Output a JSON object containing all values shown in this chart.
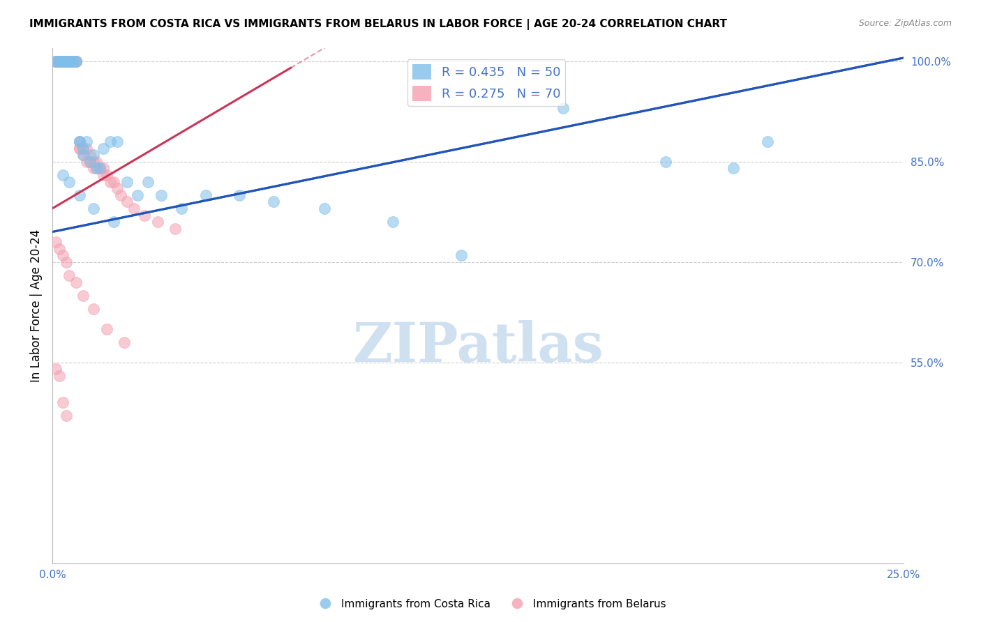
{
  "title": "IMMIGRANTS FROM COSTA RICA VS IMMIGRANTS FROM BELARUS IN LABOR FORCE | AGE 20-24 CORRELATION CHART",
  "source": "Source: ZipAtlas.com",
  "ylabel_left": "In Labor Force | Age 20-24",
  "x_min": 0.0,
  "x_max": 0.25,
  "y_min": 0.25,
  "y_max": 1.02,
  "right_yticks": [
    1.0,
    0.85,
    0.7,
    0.55
  ],
  "right_ytick_labels": [
    "100.0%",
    "85.0%",
    "70.0%",
    "55.0%"
  ],
  "blue_label": "Immigrants from Costa Rica",
  "pink_label": "Immigrants from Belarus",
  "blue_color": "#7fbfea",
  "pink_color": "#f4a0b0",
  "blue_line_color": "#2255bb",
  "pink_line_color": "#cc3355",
  "blue_R": 0.435,
  "blue_N": 50,
  "pink_R": 0.275,
  "pink_N": 70,
  "blue_trend": [
    0.0,
    0.25,
    0.745,
    1.005
  ],
  "pink_trend": [
    0.0,
    0.07,
    0.78,
    0.99
  ],
  "watermark": "ZIPatlas",
  "watermark_color": "#cfe0f0",
  "background_color": "#ffffff",
  "grid_color": "#cccccc",
  "title_fontsize": 11,
  "source_fontsize": 9,
  "blue_scatter_x": [
    0.001,
    0.001,
    0.002,
    0.002,
    0.002,
    0.003,
    0.003,
    0.003,
    0.004,
    0.004,
    0.004,
    0.005,
    0.005,
    0.005,
    0.006,
    0.006,
    0.007,
    0.007,
    0.008,
    0.008,
    0.009,
    0.009,
    0.01,
    0.011,
    0.012,
    0.013,
    0.014,
    0.015,
    0.017,
    0.019,
    0.022,
    0.025,
    0.028,
    0.032,
    0.038,
    0.045,
    0.055,
    0.065,
    0.08,
    0.1,
    0.12,
    0.15,
    0.18,
    0.2,
    0.21,
    0.003,
    0.005,
    0.008,
    0.012,
    0.018
  ],
  "blue_scatter_y": [
    1.0,
    1.0,
    1.0,
    1.0,
    1.0,
    1.0,
    1.0,
    1.0,
    1.0,
    1.0,
    1.0,
    1.0,
    1.0,
    1.0,
    1.0,
    1.0,
    1.0,
    1.0,
    0.88,
    0.88,
    0.87,
    0.86,
    0.88,
    0.85,
    0.86,
    0.84,
    0.84,
    0.87,
    0.88,
    0.88,
    0.82,
    0.8,
    0.82,
    0.8,
    0.78,
    0.8,
    0.8,
    0.79,
    0.78,
    0.76,
    0.71,
    0.93,
    0.85,
    0.84,
    0.88,
    0.83,
    0.82,
    0.8,
    0.78,
    0.76
  ],
  "pink_scatter_x": [
    0.001,
    0.001,
    0.001,
    0.001,
    0.001,
    0.002,
    0.002,
    0.002,
    0.002,
    0.002,
    0.002,
    0.003,
    0.003,
    0.003,
    0.003,
    0.003,
    0.004,
    0.004,
    0.004,
    0.004,
    0.005,
    0.005,
    0.005,
    0.005,
    0.006,
    0.006,
    0.006,
    0.007,
    0.007,
    0.007,
    0.008,
    0.008,
    0.008,
    0.009,
    0.009,
    0.01,
    0.01,
    0.011,
    0.011,
    0.012,
    0.012,
    0.013,
    0.013,
    0.014,
    0.015,
    0.015,
    0.016,
    0.017,
    0.018,
    0.019,
    0.02,
    0.022,
    0.024,
    0.027,
    0.031,
    0.036,
    0.001,
    0.002,
    0.003,
    0.004,
    0.005,
    0.007,
    0.009,
    0.012,
    0.016,
    0.021,
    0.001,
    0.002,
    0.003,
    0.004
  ],
  "pink_scatter_y": [
    1.0,
    1.0,
    1.0,
    1.0,
    1.0,
    1.0,
    1.0,
    1.0,
    1.0,
    1.0,
    1.0,
    1.0,
    1.0,
    1.0,
    1.0,
    1.0,
    1.0,
    1.0,
    1.0,
    1.0,
    1.0,
    1.0,
    1.0,
    1.0,
    1.0,
    1.0,
    1.0,
    1.0,
    1.0,
    1.0,
    0.88,
    0.87,
    0.87,
    0.87,
    0.86,
    0.87,
    0.85,
    0.86,
    0.85,
    0.85,
    0.84,
    0.85,
    0.84,
    0.84,
    0.83,
    0.84,
    0.83,
    0.82,
    0.82,
    0.81,
    0.8,
    0.79,
    0.78,
    0.77,
    0.76,
    0.75,
    0.73,
    0.72,
    0.71,
    0.7,
    0.68,
    0.67,
    0.65,
    0.63,
    0.6,
    0.58,
    0.54,
    0.53,
    0.49,
    0.47
  ]
}
